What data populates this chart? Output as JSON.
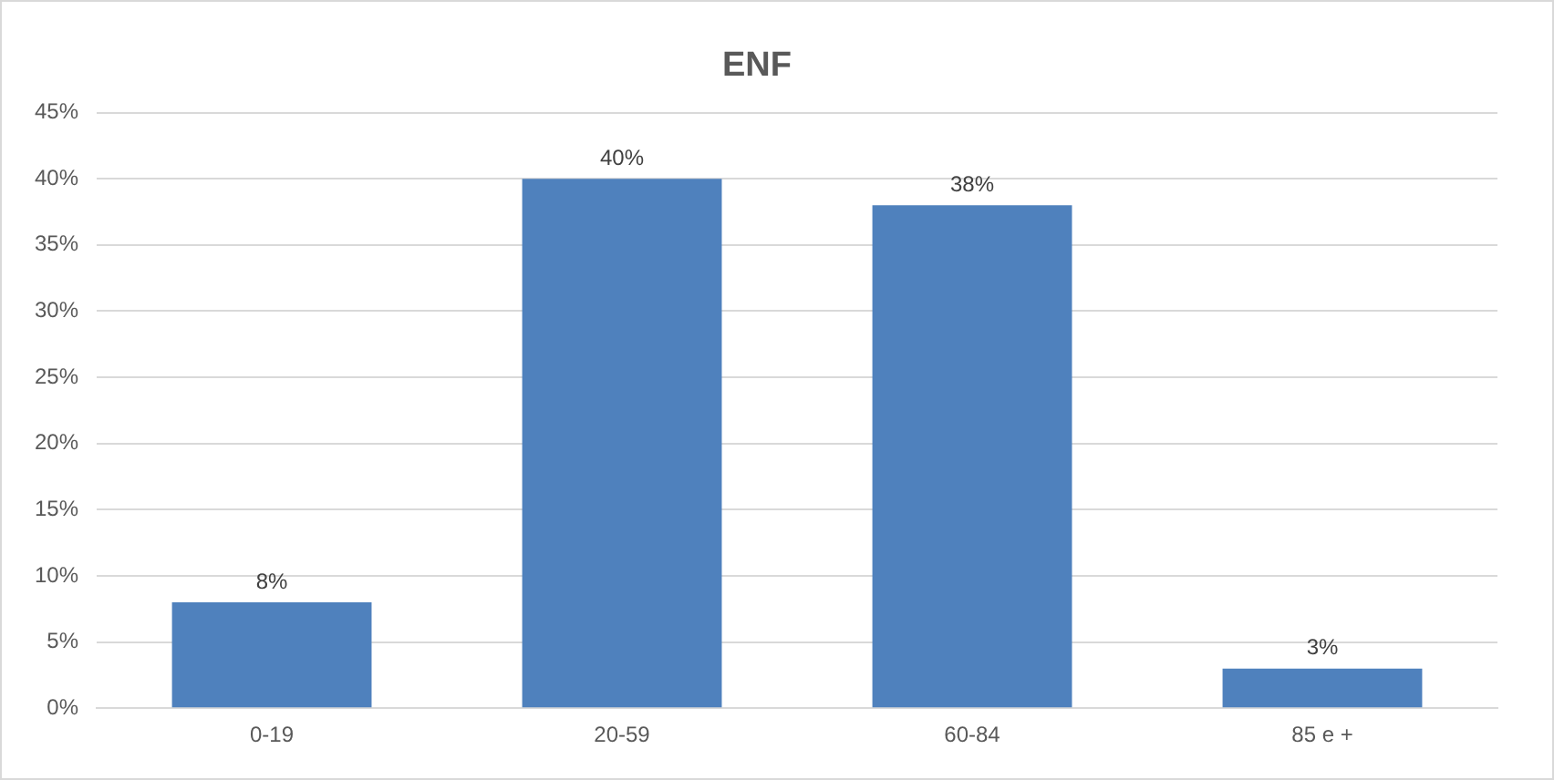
{
  "chart_data": {
    "type": "bar",
    "title": "ENF",
    "categories": [
      "0-19",
      "20-59",
      "60-84",
      "85 e +"
    ],
    "values": [
      8,
      40,
      38,
      3
    ],
    "color": "#4f81bd",
    "ylim": [
      0,
      45
    ],
    "yticks": [
      {
        "value": 0,
        "label": "0%"
      },
      {
        "value": 5,
        "label": "5%"
      },
      {
        "value": 10,
        "label": "10%"
      },
      {
        "value": 15,
        "label": "15%"
      },
      {
        "value": 20,
        "label": "20%"
      },
      {
        "value": 25,
        "label": "25%"
      },
      {
        "value": 30,
        "label": "30%"
      },
      {
        "value": 35,
        "label": "35%"
      },
      {
        "value": 40,
        "label": "40%"
      },
      {
        "value": 45,
        "label": "45%"
      }
    ],
    "value_labels": [
      "8%",
      "40%",
      "38%",
      "3%"
    ],
    "grid": "y",
    "legend": false
  }
}
